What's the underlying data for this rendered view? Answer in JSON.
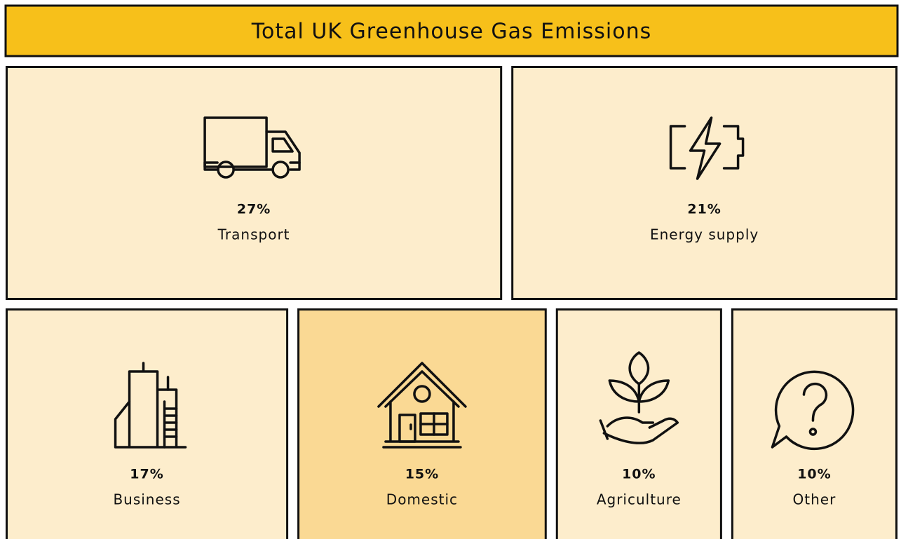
{
  "chart_data": {
    "type": "treemap",
    "title": "Total UK Greenhouse Gas Emissions",
    "title_color": "#f7c01a",
    "categories": [
      "Transport",
      "Energy supply",
      "Business",
      "Domestic",
      "Agriculture",
      "Other"
    ],
    "values": [
      27,
      21,
      17,
      15,
      10,
      10
    ],
    "value_labels": [
      "27%",
      "21%",
      "17%",
      "15%",
      "10%",
      "10%"
    ],
    "colors": [
      "#fdedcc",
      "#fdedcc",
      "#fdedcc",
      "#fad994",
      "#fdedcc",
      "#fdedcc"
    ]
  }
}
